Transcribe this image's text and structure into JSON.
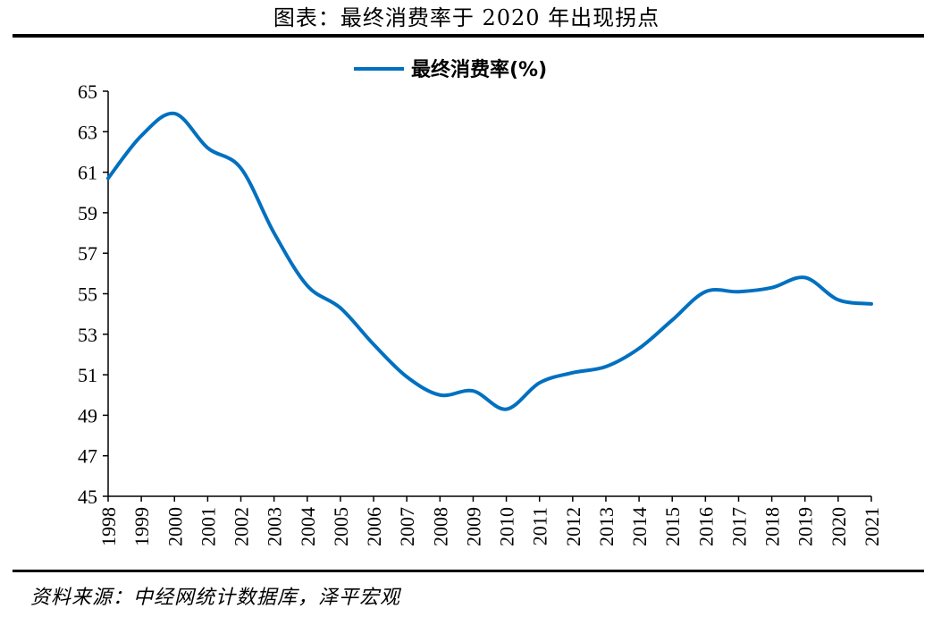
{
  "page": {
    "title": "图表：最终消费率于 2020 年出现拐点",
    "source": "资料来源：中经网统计数据库，泽平宏观"
  },
  "chart_data": {
    "type": "line",
    "title": "",
    "xlabel": "",
    "ylabel": "",
    "ylim": [
      45,
      65
    ],
    "yticks": [
      "45",
      "47",
      "49",
      "51",
      "53",
      "55",
      "57",
      "59",
      "61",
      "63",
      "65"
    ],
    "x": [
      "1998",
      "1999",
      "2000",
      "2001",
      "2002",
      "2003",
      "2004",
      "2005",
      "2006",
      "2007",
      "2008",
      "2009",
      "2010",
      "2011",
      "2012",
      "2013",
      "2014",
      "2015",
      "2016",
      "2017",
      "2018",
      "2019",
      "2020",
      "2021"
    ],
    "series": [
      {
        "name": "最终消费率(%)",
        "color": "#0070C0",
        "values": [
          60.7,
          62.8,
          63.9,
          62.2,
          61.2,
          58.0,
          55.4,
          54.3,
          52.5,
          50.9,
          50.0,
          50.2,
          49.3,
          50.6,
          51.1,
          51.4,
          52.3,
          53.7,
          55.1,
          55.1,
          55.3,
          55.8,
          54.7,
          54.5
        ]
      }
    ],
    "legend": "top-center",
    "grid": false
  }
}
